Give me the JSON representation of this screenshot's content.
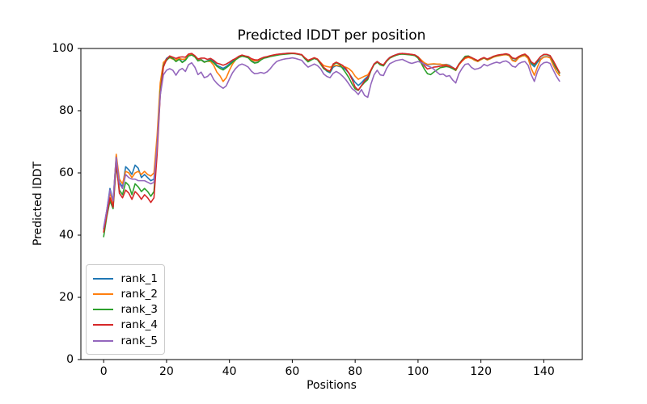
{
  "chart_data": {
    "type": "line",
    "title": "Predicted lDDT per position",
    "xlabel": "Positions",
    "ylabel": "Predicted lDDT",
    "xlim": [
      -7.25,
      152.25
    ],
    "ylim": [
      0,
      100
    ],
    "xticks": [
      0,
      20,
      40,
      60,
      80,
      100,
      120,
      140
    ],
    "yticks": [
      0,
      20,
      40,
      60,
      80,
      100
    ],
    "grid": false,
    "legend_position": "lower left",
    "line_width": 1.6,
    "x": [
      0,
      1,
      2,
      3,
      4,
      5,
      6,
      7,
      8,
      9,
      10,
      11,
      12,
      13,
      14,
      15,
      16,
      17,
      18,
      19,
      20,
      21,
      22,
      23,
      24,
      25,
      26,
      27,
      28,
      29,
      30,
      31,
      32,
      33,
      34,
      35,
      36,
      37,
      38,
      39,
      40,
      41,
      42,
      43,
      44,
      45,
      46,
      47,
      48,
      49,
      50,
      51,
      52,
      53,
      54,
      55,
      56,
      57,
      58,
      59,
      60,
      61,
      62,
      63,
      64,
      65,
      66,
      67,
      68,
      69,
      70,
      71,
      72,
      73,
      74,
      75,
      76,
      77,
      78,
      79,
      80,
      81,
      82,
      83,
      84,
      85,
      86,
      87,
      88,
      89,
      90,
      91,
      92,
      93,
      94,
      95,
      96,
      97,
      98,
      99,
      100,
      101,
      102,
      103,
      104,
      105,
      106,
      107,
      108,
      109,
      110,
      111,
      112,
      113,
      114,
      115,
      116,
      117,
      118,
      119,
      120,
      121,
      122,
      123,
      124,
      125,
      126,
      127,
      128,
      129,
      130,
      131,
      132,
      133,
      134,
      135,
      136,
      137,
      138,
      139,
      140,
      141,
      142,
      143,
      144,
      145
    ],
    "series": [
      {
        "name": "rank_1",
        "color": "#1f77b4",
        "values": [
          42,
          48,
          55,
          51,
          65.5,
          57,
          55.5,
          62,
          61,
          59.5,
          62.5,
          61.5,
          58.5,
          59.5,
          58.5,
          57.5,
          58,
          70,
          88,
          95,
          96.8,
          97.5,
          96.9,
          96,
          96.8,
          95.6,
          96.4,
          97.9,
          98.2,
          97.4,
          96.2,
          96.5,
          95.7,
          96,
          96.4,
          95.8,
          94.6,
          94.1,
          93.6,
          94.2,
          95,
          96,
          96.6,
          97.4,
          97.8,
          97.5,
          97.2,
          96.1,
          95.4,
          95.6,
          96.5,
          97,
          97.3,
          97.6,
          97.8,
          98,
          98.2,
          98.3,
          98.4,
          98.5,
          98.5,
          98.4,
          98.2,
          98,
          96.8,
          95.8,
          96.4,
          96.9,
          96.5,
          95.2,
          93.7,
          92.7,
          92.2,
          94,
          94.5,
          94.2,
          94,
          93.2,
          92.1,
          90.6,
          89.1,
          88.1,
          89,
          90.1,
          91,
          93,
          95,
          95.8,
          95,
          94.6,
          96.1,
          97.1,
          97.6,
          98,
          98.3,
          98.4,
          98.3,
          98.2,
          98,
          97.9,
          97.3,
          96.3,
          95.3,
          94.8,
          94.9,
          95,
          94.9,
          94.9,
          94.8,
          94.9,
          94.6,
          93.9,
          93.2,
          94.9,
          96.1,
          97,
          97.3,
          96.9,
          96.3,
          95.9,
          96.5,
          97,
          96.4,
          96.9,
          97.3,
          97.6,
          97.8,
          98,
          98.1,
          97.8,
          96.3,
          96,
          97.1,
          97.6,
          97.8,
          97,
          95.1,
          94.1,
          95.6,
          96.6,
          97.3,
          97.4,
          97.2,
          95.1,
          93.6,
          92.2
        ]
      },
      {
        "name": "rank_2",
        "color": "#ff7f0e",
        "values": [
          41,
          47.5,
          53.5,
          50,
          66,
          58,
          56.5,
          60.5,
          60,
          58.5,
          60,
          60.5,
          59.5,
          60.5,
          59.5,
          59,
          60,
          72,
          89,
          95.5,
          96.5,
          97,
          96.6,
          96.3,
          96.8,
          96.5,
          96.6,
          98,
          98.1,
          97.5,
          96.1,
          96.4,
          95.6,
          95.9,
          95.8,
          94.6,
          92.4,
          91.2,
          89.4,
          90.6,
          93,
          95,
          96.4,
          97.2,
          97.6,
          97.4,
          97.1,
          96.4,
          96,
          96.1,
          96.6,
          97,
          97.2,
          97.5,
          97.7,
          97.9,
          98.1,
          98.2,
          98.3,
          98.4,
          98.5,
          98.4,
          98.2,
          98,
          97,
          96.2,
          96.6,
          97,
          96.6,
          95.5,
          94.5,
          94.2,
          94,
          94.4,
          94.6,
          94.4,
          94.2,
          94,
          93.5,
          92.6,
          91.1,
          90.1,
          90.6,
          91.1,
          91.5,
          93.1,
          94.9,
          95.6,
          94.9,
          94.5,
          95.9,
          96.9,
          97.4,
          97.9,
          98.2,
          98.3,
          98.2,
          98.1,
          97.9,
          97.8,
          97.3,
          96.3,
          95.4,
          94.9,
          95,
          95.1,
          95,
          95,
          94.7,
          94.8,
          94.4,
          93.6,
          92.9,
          94.7,
          95.9,
          96.8,
          97.1,
          96.8,
          96.2,
          95.8,
          96.4,
          96.9,
          96.3,
          96.7,
          97.2,
          97.5,
          97.7,
          97.9,
          98,
          97.7,
          96.1,
          95.8,
          97,
          97.5,
          97.7,
          96.8,
          93.6,
          91.4,
          94.1,
          96.4,
          97.2,
          97.3,
          97,
          94.6,
          92.6,
          91.3
        ]
      },
      {
        "name": "rank_3",
        "color": "#2ca02c",
        "values": [
          39.5,
          46,
          51,
          48.5,
          62.5,
          54.5,
          53,
          57,
          56,
          53,
          56.5,
          55.5,
          54,
          55,
          54,
          52.5,
          54,
          68,
          86,
          94.5,
          96.2,
          97.2,
          96.8,
          95.8,
          96.5,
          95.5,
          96.2,
          97.6,
          97.9,
          97.3,
          96,
          96.3,
          95.6,
          95.9,
          96.2,
          95.4,
          94.3,
          93.6,
          93.1,
          93.8,
          94.6,
          95.6,
          96.4,
          97.1,
          97.5,
          97.3,
          97,
          95.9,
          95.3,
          95.5,
          96.3,
          96.9,
          97.1,
          97.4,
          97.6,
          97.8,
          98,
          98.1,
          98.2,
          98.3,
          98.4,
          98.3,
          98.1,
          97.9,
          96.7,
          95.7,
          96.3,
          96.8,
          96.4,
          95,
          93.5,
          92.9,
          92.5,
          94.8,
          95.4,
          94.9,
          93.6,
          92.2,
          90.6,
          88.6,
          87,
          86.5,
          88,
          89.1,
          90,
          92.8,
          94.8,
          95.6,
          94.7,
          94.4,
          95.9,
          96.9,
          97.4,
          97.8,
          98.1,
          98.2,
          98.1,
          98,
          97.9,
          97.7,
          96.9,
          95.3,
          93.4,
          91.9,
          91.6,
          92.4,
          93.1,
          93.8,
          94,
          94.2,
          94,
          93.5,
          93,
          95,
          96.3,
          97.5,
          97.6,
          97.1,
          96.5,
          96,
          96.6,
          97,
          96.5,
          96.9,
          97.4,
          97.7,
          97.9,
          98.1,
          98.2,
          97.9,
          96.9,
          96.6,
          97.3,
          97.8,
          98.1,
          97.3,
          95.5,
          94.7,
          96.1,
          97.4,
          98,
          98,
          97.7,
          95.7,
          93.7,
          92
        ]
      },
      {
        "name": "rank_4",
        "color": "#d62728",
        "values": [
          41,
          46.5,
          52,
          49,
          63.5,
          53.5,
          52,
          54.5,
          53.5,
          51.5,
          54,
          53,
          51.5,
          53,
          52,
          50.5,
          52,
          66,
          85,
          94,
          96.5,
          97.6,
          97.2,
          96.8,
          97.2,
          97.3,
          97.2,
          98.2,
          98.4,
          97.7,
          96.6,
          96.9,
          96.9,
          96.5,
          96.8,
          96.2,
          95.3,
          95,
          94.6,
          95,
          95.6,
          96.3,
          96.8,
          97.5,
          97.9,
          97.6,
          97.4,
          96.7,
          96.4,
          96.3,
          96.8,
          97.2,
          97.4,
          97.7,
          97.9,
          98.1,
          98.2,
          98.3,
          98.4,
          98.5,
          98.5,
          98.4,
          98.2,
          98,
          97,
          96.2,
          96.6,
          97,
          96.6,
          95.4,
          93.9,
          93.1,
          92.7,
          95,
          95.6,
          95.1,
          94.6,
          93.6,
          92.1,
          90.1,
          87.6,
          86.6,
          88.1,
          89.6,
          90.5,
          93,
          95,
          95.8,
          95.1,
          94.7,
          96.1,
          97.1,
          97.6,
          98,
          98.3,
          98.4,
          98.3,
          98.2,
          98.1,
          97.9,
          97.3,
          95.9,
          94.4,
          93.4,
          93.7,
          94,
          94.1,
          94.3,
          94.4,
          94.5,
          94.2,
          93.9,
          93.3,
          94.9,
          96.1,
          97.1,
          97.4,
          97.1,
          96.6,
          96.1,
          96.7,
          97.1,
          96.6,
          97,
          97.5,
          97.8,
          98,
          98.1,
          98.3,
          98,
          97,
          96.7,
          97.4,
          97.9,
          98.2,
          97.4,
          95.7,
          95,
          96.2,
          97.4,
          98.1,
          98.1,
          97.7,
          96.1,
          94.2,
          92.3
        ]
      },
      {
        "name": "rank_5",
        "color": "#9467bd",
        "values": [
          42.5,
          48,
          54.5,
          51,
          65,
          56.5,
          55,
          59.5,
          58.5,
          58,
          58,
          57.5,
          57.5,
          57.5,
          57,
          56.5,
          57,
          69,
          85,
          91.5,
          93,
          93.5,
          93,
          91.4,
          93,
          93.6,
          92.6,
          94.8,
          95.4,
          94,
          91.6,
          92.4,
          90.6,
          91,
          92,
          90,
          88.8,
          87.9,
          87.2,
          88,
          90.2,
          92.2,
          93.6,
          94.6,
          95,
          94.6,
          94,
          92.7,
          91.9,
          92,
          92.3,
          92,
          92.5,
          93.5,
          94.8,
          95.8,
          96.2,
          96.5,
          96.7,
          96.8,
          97,
          96.8,
          96.5,
          96.2,
          95,
          94,
          94.5,
          95,
          94.5,
          93.5,
          91.8,
          91,
          90.6,
          92,
          92.6,
          92,
          91.1,
          90,
          88.6,
          87.1,
          86.3,
          85.2,
          86.8,
          84.9,
          84.3,
          88.5,
          91.5,
          93,
          91.5,
          91.3,
          93.6,
          95.1,
          95.6,
          96.1,
          96.3,
          96.5,
          96,
          95.5,
          95.2,
          95.5,
          95.8,
          95.5,
          94.9,
          94.4,
          94,
          93.4,
          92.4,
          91.6,
          91.8,
          91,
          91.3,
          89.9,
          88.9,
          91.9,
          93.6,
          94.9,
          95.1,
          93.9,
          93.3,
          93.5,
          93.9,
          94.9,
          94.4,
          94.9,
          95.3,
          95.6,
          95.3,
          95.8,
          96,
          95.4,
          94.3,
          94,
          95.1,
          95.6,
          95.8,
          94.6,
          91.6,
          89.4,
          92.6,
          94.6,
          95.4,
          95.6,
          95.2,
          93.1,
          91.1,
          89.5
        ]
      }
    ]
  }
}
